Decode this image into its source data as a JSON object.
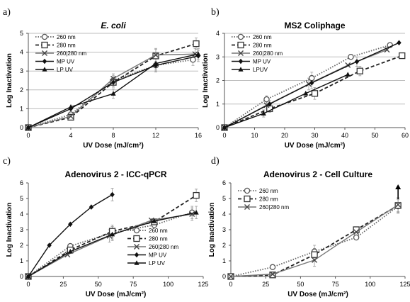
{
  "chart_data": [
    {
      "type": "line",
      "panel_label": "a)",
      "title": "E. coli",
      "title_italic": true,
      "xlabel": "UV Dose (mJ/cm²)",
      "ylabel": "Log Inactivation",
      "xlim": [
        0,
        16
      ],
      "ylim": [
        0,
        5
      ],
      "xticks": [
        0,
        4,
        8,
        12,
        16
      ],
      "yticks": [
        0,
        1,
        2,
        3,
        4,
        5
      ],
      "grid": true,
      "legend_position": "top-left",
      "series": [
        {
          "name": "260 nm",
          "marker": "circle",
          "dash": "dotted",
          "x": [
            0,
            4,
            8,
            12,
            15.5
          ],
          "y": [
            0,
            0.7,
            2.5,
            3.3,
            3.6
          ]
        },
        {
          "name": "280 nm",
          "marker": "square",
          "dash": "dashed",
          "x": [
            0,
            4,
            8,
            12,
            15.8
          ],
          "y": [
            0,
            0.55,
            2.4,
            3.8,
            4.45
          ]
        },
        {
          "name": "260|280 nm",
          "marker": "x",
          "dash": "solid",
          "x": [
            0,
            4,
            8,
            12,
            15.7
          ],
          "y": [
            0,
            0.6,
            2.6,
            3.85,
            3.9
          ]
        },
        {
          "name": "MP UV",
          "marker": "diamond",
          "dash": "solid",
          "x": [
            0,
            4,
            8,
            12,
            16
          ],
          "y": [
            0,
            1.0,
            2.4,
            3.3,
            3.8
          ]
        },
        {
          "name": "LP UV",
          "marker": "triangle",
          "dash": "solid",
          "x": [
            0,
            4,
            8,
            12,
            16
          ],
          "y": [
            0,
            1.1,
            1.8,
            3.4,
            3.9
          ]
        }
      ]
    },
    {
      "type": "line",
      "panel_label": "b)",
      "title": "MS2 Coliphage",
      "title_italic": false,
      "xlabel": "UV Dose (mJ/cm²)",
      "ylabel": "Log Inactivation",
      "xlim": [
        0,
        60
      ],
      "ylim": [
        0,
        4
      ],
      "xticks": [
        0,
        10,
        20,
        30,
        40,
        50,
        60
      ],
      "yticks": [
        0,
        1,
        2,
        3,
        4
      ],
      "grid": true,
      "legend_position": "top-left",
      "series": [
        {
          "name": "260 nm",
          "marker": "circle",
          "dash": "dotted",
          "x": [
            0,
            14,
            29,
            42,
            55
          ],
          "y": [
            0,
            1.2,
            2.1,
            3.0,
            3.5
          ]
        },
        {
          "name": "280 nm",
          "marker": "square",
          "dash": "dashed",
          "x": [
            0,
            15,
            30,
            45,
            59
          ],
          "y": [
            0,
            0.8,
            1.45,
            2.4,
            3.05
          ]
        },
        {
          "name": "260|280 nm",
          "marker": "x",
          "dash": "solid",
          "x": [
            0,
            14,
            28,
            41,
            54
          ],
          "y": [
            0,
            0.95,
            1.85,
            2.65,
            3.3
          ]
        },
        {
          "name": "MP UV",
          "marker": "diamond",
          "dash": "solid",
          "x": [
            0,
            15,
            29,
            44,
            58
          ],
          "y": [
            0,
            1.0,
            1.9,
            2.8,
            3.6
          ]
        },
        {
          "name": "LPUV",
          "marker": "triangle",
          "dash": "solid",
          "x": [
            0,
            13,
            27,
            41
          ],
          "y": [
            0,
            0.6,
            1.45,
            2.25
          ]
        }
      ]
    },
    {
      "type": "line",
      "panel_label": "c)",
      "title": "Adenovirus 2 - ICC-qPCR",
      "title_italic": false,
      "xlabel": "UV Dose (mJ/cm²)",
      "ylabel": "Log Inactivation",
      "xlim": [
        0,
        125
      ],
      "ylim": [
        0,
        6
      ],
      "xticks": [
        0,
        25,
        50,
        75,
        100,
        125
      ],
      "yticks": [
        0,
        1,
        2,
        3,
        4,
        5,
        6
      ],
      "grid": false,
      "legend_position": "bottom-right",
      "series": [
        {
          "name": "260 nm",
          "marker": "circle",
          "dash": "dotted",
          "x": [
            0,
            30,
            60,
            90,
            117
          ],
          "y": [
            0,
            1.95,
            2.8,
            3.3,
            4.1
          ]
        },
        {
          "name": "280 nm",
          "marker": "square",
          "dash": "dashed",
          "x": [
            0,
            30,
            60,
            90,
            120
          ],
          "y": [
            0,
            1.7,
            2.9,
            3.5,
            5.2
          ]
        },
        {
          "name": "260|280 nm",
          "marker": "x",
          "dash": "solid",
          "x": [
            0,
            28,
            58,
            88,
            117
          ],
          "y": [
            0,
            1.4,
            2.6,
            3.6,
            4.0
          ]
        },
        {
          "name": "MP UV",
          "marker": "diamond",
          "dash": "solid",
          "x": [
            0,
            15,
            30,
            45,
            60
          ],
          "y": [
            0,
            2.0,
            3.35,
            4.45,
            5.25
          ]
        },
        {
          "name": "LP UV",
          "marker": "triangle",
          "dash": "solid",
          "x": [
            0,
            30,
            60,
            90,
            120
          ],
          "y": [
            0,
            1.6,
            2.7,
            3.55,
            4.1
          ]
        }
      ]
    },
    {
      "type": "line",
      "panel_label": "d)",
      "title": "Adenovirus 2 - Cell Culture",
      "title_italic": false,
      "xlabel": "UV Dose (mJ/cm²)",
      "ylabel": "Log Inactivation",
      "xlim": [
        0,
        125
      ],
      "ylim": [
        0,
        6
      ],
      "xticks": [
        0,
        25,
        50,
        75,
        100,
        125
      ],
      "yticks": [
        0,
        1,
        2,
        3,
        4,
        5,
        6
      ],
      "grid": false,
      "legend_position": "top-left",
      "annotation": "upward arrow above the 120 mJ/cm² point",
      "series": [
        {
          "name": "260 nm",
          "marker": "circle",
          "dash": "dotted",
          "x": [
            0,
            30,
            60,
            90,
            120
          ],
          "y": [
            0,
            0.6,
            1.6,
            2.5,
            4.5
          ]
        },
        {
          "name": "280 nm",
          "marker": "square",
          "dash": "dashed",
          "x": [
            0,
            30,
            60,
            90,
            120
          ],
          "y": [
            0,
            0.1,
            1.4,
            3.0,
            4.55
          ]
        },
        {
          "name": "260|280 nm",
          "marker": "x",
          "dash": "solid",
          "x": [
            0,
            30,
            60,
            90,
            120
          ],
          "y": [
            0,
            0.15,
            1.05,
            2.85,
            4.6
          ]
        }
      ]
    }
  ]
}
